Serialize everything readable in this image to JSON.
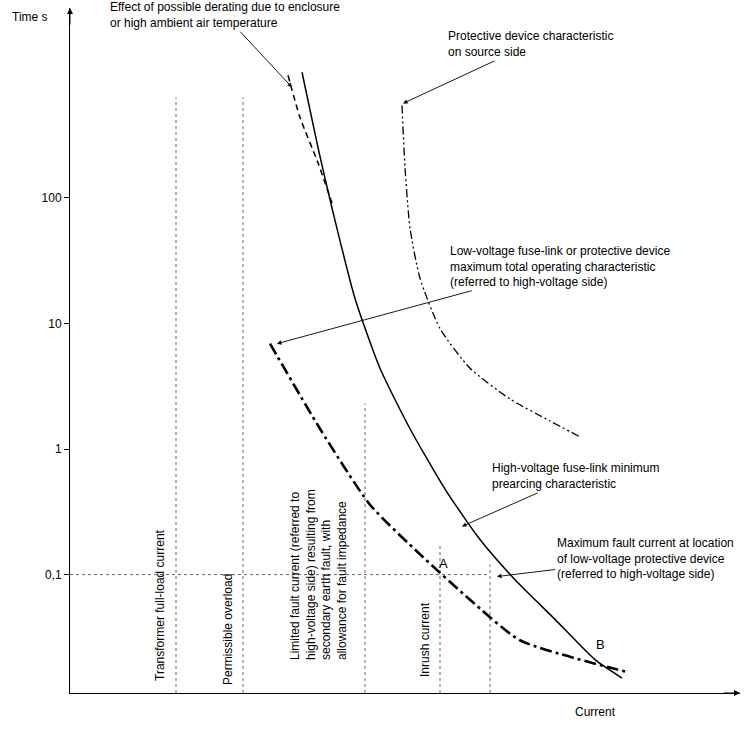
{
  "chart_data": {
    "type": "line",
    "log": "y",
    "grid": false,
    "tick_labels": "y",
    "x_label": "Current",
    "y_label": "Time s",
    "xlim": [
      0,
      670
    ],
    "ylim": [
      0.0114,
      3250
    ],
    "yticks": [
      {
        "value": 0.1,
        "label": "0,1"
      },
      1,
      10,
      100
    ],
    "series": [
      {
        "color": "#000000",
        "line_style": "solid",
        "x": [
          232,
          248,
          262,
          285,
          310,
          340,
          375,
          410,
          445,
          485,
          525,
          552
        ],
        "values": [
          1000,
          251,
          83,
          15.8,
          4.4,
          1.45,
          0.48,
          0.19,
          0.091,
          0.044,
          0.021,
          0.015
        ]
      },
      {
        "color": "#000000",
        "line_style": "dash",
        "x": [
          218,
          230,
          248,
          262
        ],
        "values": [
          946,
          437,
          190,
          91
        ]
      },
      {
        "color": "#000000",
        "line_style": "dashdot",
        "x": [
          200,
          250,
          300,
          350,
          400,
          450,
          558
        ],
        "values": [
          6.9,
          1.45,
          0.36,
          0.145,
          0.063,
          0.03,
          0.0167
        ]
      },
      {
        "color": "#000000",
        "line_style": "dashdotdot",
        "x": [
          332,
          335,
          340,
          350,
          370,
          400,
          440,
          480,
          510
        ],
        "values": [
          545,
          174,
          57.5,
          22.9,
          9.1,
          4.4,
          2.5,
          1.67,
          1.25
        ]
      }
    ],
    "reference_lines": [
      {
        "label": "Transformer full-load current",
        "x": [
          106,
          106
        ],
        "y": [
          0.0114,
          631
        ]
      },
      {
        "label": "Permissible overload",
        "x": [
          173,
          173
        ],
        "y": [
          0.0114,
          631
        ]
      },
      {
        "label": "Limited fault current (referred to\nhigh-voltage side) resulting from\nsecondary earth fault, with\nallowance for fault impedance",
        "x": [
          295,
          295
        ],
        "y": [
          0.0114,
          2.3
        ]
      },
      {
        "label": "Inrush current",
        "x": [
          370,
          370
        ],
        "y": [
          0.0114,
          0.174
        ]
      },
      {
        "x": [
          420,
          420
        ],
        "y": [
          0.0114,
          0.12
        ]
      },
      {
        "x": [
          0,
          420
        ],
        "y": [
          0.1,
          0.1
        ]
      }
    ],
    "annotations": [
      {
        "text": "Effect of possible derating due to enclosure\nor high ambient air temperature"
      },
      {
        "text": "Protective device characteristic\non source side"
      },
      {
        "text": "Low-voltage fuse-link or protective device\nmaximum total operating characteristic\n(referred to high-voltage side)"
      },
      {
        "text": "High-voltage fuse-link minimum\nprearcing characteristic"
      },
      {
        "text": "Maximum fault current at location\nof low-voltage protective device\n(referred to high-voltage side)"
      }
    ],
    "points": [
      {
        "label": "A",
        "x": 370,
        "y": 0.1
      },
      {
        "label": "B",
        "x": 520,
        "y": 0.024
      }
    ]
  }
}
